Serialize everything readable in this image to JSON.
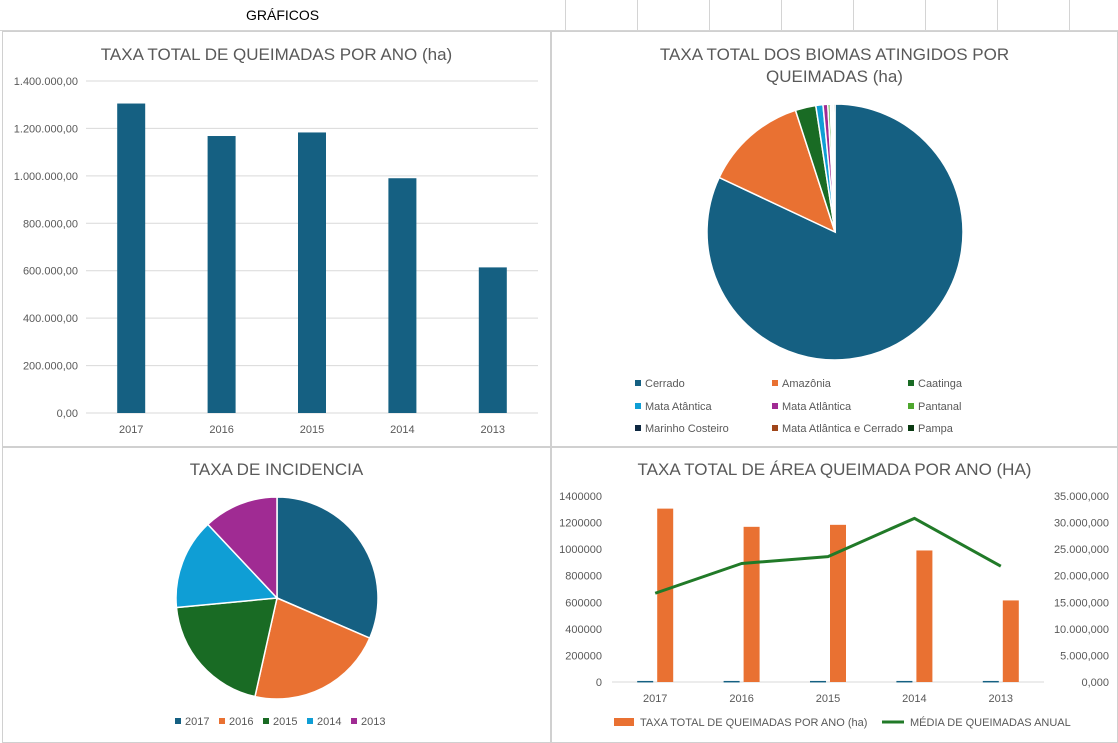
{
  "sheet": {
    "title": "GRÁFICOS"
  },
  "chart_data": [
    {
      "type": "bar",
      "title": "TAXA TOTAL DE QUEIMADAS POR ANO (ha)",
      "categories": [
        "2017",
        "2016",
        "2015",
        "2014",
        "2013"
      ],
      "values": [
        1305000,
        1168000,
        1183000,
        990000,
        614000
      ],
      "ylim": [
        0,
        1400000
      ],
      "yticks": [
        "0,00",
        "200.000,00",
        "400.000,00",
        "600.000,00",
        "800.000,00",
        "1.000.000,00",
        "1.200.000,00",
        "1.400.000,00"
      ],
      "color": "#156082",
      "grid": true
    },
    {
      "type": "pie",
      "title": "TAXA TOTAL DOS BIOMAS ATINGIDOS POR QUEIMADAS (ha)",
      "slices": [
        {
          "name": "Cerrado",
          "value": 82.0,
          "color": "#156082"
        },
        {
          "name": "Amazônia",
          "value": 13.0,
          "color": "#e97132"
        },
        {
          "name": "Caatinga",
          "value": 2.6,
          "color": "#196b24"
        },
        {
          "name": "Mata Atântica",
          "value": 0.9,
          "color": "#0f9ed5"
        },
        {
          "name": "Mata Atlântica",
          "value": 0.6,
          "color": "#a02b93"
        },
        {
          "name": "Pantanal",
          "value": 0.3,
          "color": "#4ea72e"
        },
        {
          "name": "Marinho Costeiro",
          "value": 0.2,
          "color": "#0e2841"
        },
        {
          "name": "Mata Atlântica e Cerrado",
          "value": 0.2,
          "color": "#a0461a"
        },
        {
          "name": "Pampa",
          "value": 0.2,
          "color": "#0b3a12"
        }
      ],
      "legend": "bottom"
    },
    {
      "type": "pie",
      "title": "TAXA DE INCIDENCIA",
      "slices": [
        {
          "name": "2017",
          "value": 31.5,
          "color": "#156082"
        },
        {
          "name": "2016",
          "value": 22.0,
          "color": "#e97132"
        },
        {
          "name": "2015",
          "value": 20.0,
          "color": "#196b24"
        },
        {
          "name": "2014",
          "value": 14.5,
          "color": "#0f9ed5"
        },
        {
          "name": "2013",
          "value": 12.0,
          "color": "#a02b93"
        }
      ],
      "legend": "bottom"
    },
    {
      "type": "bar",
      "title": "TAXA TOTAL DE ÁREA QUEIMADA POR ANO (HA)",
      "categories": [
        "2017",
        "2016",
        "2015",
        "2014",
        "2013"
      ],
      "series": [
        {
          "name": "",
          "kind": "bar",
          "axis": "left",
          "values": [
            8000,
            8000,
            8000,
            8000,
            8000
          ],
          "color": "#156082"
        },
        {
          "name": "TAXA TOTAL DE QUEIMADAS POR ANO (ha)",
          "kind": "bar",
          "axis": "left",
          "values": [
            1305000,
            1168000,
            1183000,
            990000,
            614000
          ],
          "color": "#e97132"
        },
        {
          "name": "MÉDIA DE QUEIMADAS ANUAL",
          "kind": "line",
          "axis": "right",
          "values": [
            16700000,
            22300000,
            23600000,
            30800000,
            21800000
          ],
          "color": "#217a28"
        }
      ],
      "ylim_left": [
        0,
        1400000
      ],
      "yticks_left": [
        "0",
        "200000",
        "400000",
        "600000",
        "800000",
        "1000000",
        "1200000",
        "1400000"
      ],
      "ylim_right": [
        0,
        35000000
      ],
      "yticks_right": [
        "0,000",
        "5.000,000",
        "10.000,000",
        "15.000,000",
        "20.000,000",
        "25.000,000",
        "30.000,000",
        "35.000,000"
      ],
      "legend": "bottom"
    }
  ]
}
